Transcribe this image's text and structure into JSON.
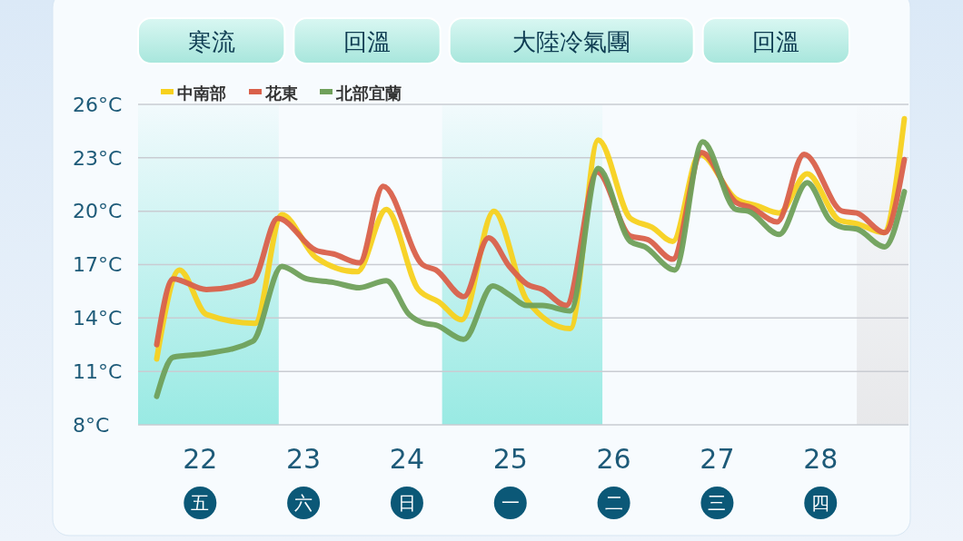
{
  "chart_data": {
    "type": "line",
    "xlim": [
      21.4,
      28.85
    ],
    "ylim": [
      8,
      26
    ],
    "xticks": [
      {
        "value": 22,
        "label": "22\n五"
      },
      {
        "value": 23,
        "label": "23\n六"
      },
      {
        "value": 24,
        "label": "24\n日"
      },
      {
        "value": 25,
        "label": "25\n一"
      },
      {
        "value": 26,
        "label": "26\n二"
      },
      {
        "value": 27,
        "label": "27\n三"
      },
      {
        "value": 28,
        "label": "28\n四"
      }
    ],
    "yticks": [
      {
        "value": 8,
        "label": "8°C"
      },
      {
        "value": 11,
        "label": "11°C"
      },
      {
        "value": 14,
        "label": "14°C"
      },
      {
        "value": 17,
        "label": "17°C"
      },
      {
        "value": 20,
        "label": "20°C"
      },
      {
        "value": 23,
        "label": "23°C"
      },
      {
        "value": 26,
        "label": "26°C"
      }
    ],
    "grid": "y",
    "legend": "top left",
    "marker": "none",
    "line_style": "solid",
    "annotations": [
      "寒流",
      "回溫",
      "大陸冷氣團",
      "回溫"
    ],
    "bands": [
      {
        "axis": "x",
        "from": 21.4,
        "to": 22.76,
        "color": "#8ee8e0"
      },
      {
        "axis": "x",
        "from": 24.34,
        "to": 25.89,
        "color": "#8ee8e0"
      },
      {
        "axis": "x",
        "from": 28.35,
        "to": 28.85,
        "color": "#e6e6e8"
      }
    ],
    "series": [
      {
        "name": "中南部",
        "color": "#f7d11e",
        "x": [
          21.58,
          21.8,
          22.06,
          22.53,
          22.79,
          23.12,
          23.52,
          23.8,
          24.11,
          24.31,
          24.53,
          24.84,
          25.16,
          25.58,
          25.85,
          26.16,
          26.37,
          26.57,
          26.83,
          27.18,
          27.39,
          27.6,
          27.87,
          28.18,
          28.35,
          28.61,
          28.81
        ],
        "values": [
          11.7,
          16.7,
          14.2,
          13.7,
          19.8,
          17.4,
          16.6,
          20.1,
          15.6,
          14.9,
          13.9,
          20.0,
          15.0,
          13.4,
          24.0,
          19.6,
          19.1,
          18.3,
          23.2,
          20.7,
          20.3,
          19.9,
          22.1,
          19.5,
          19.3,
          18.8,
          25.2
        ]
      },
      {
        "name": "花東",
        "color": "#d9604a",
        "x": [
          21.58,
          21.74,
          22.06,
          22.51,
          22.75,
          23.12,
          23.29,
          23.54,
          23.77,
          24.15,
          24.28,
          24.55,
          24.79,
          24.99,
          25.16,
          25.31,
          25.54,
          25.84,
          26.16,
          26.33,
          26.57,
          26.85,
          27.18,
          27.33,
          27.58,
          27.84,
          28.21,
          28.35,
          28.62,
          28.81
        ],
        "values": [
          12.5,
          16.2,
          15.6,
          16.1,
          19.6,
          17.8,
          17.6,
          17.1,
          21.4,
          17.0,
          16.7,
          15.2,
          18.5,
          16.9,
          15.9,
          15.6,
          14.7,
          22.2,
          18.6,
          18.4,
          17.3,
          23.3,
          20.5,
          20.2,
          19.4,
          23.2,
          20.0,
          19.9,
          18.8,
          22.9
        ]
      },
      {
        "name": "北部宜蘭",
        "color": "#6fa05a",
        "x": [
          21.58,
          21.74,
          22.06,
          22.51,
          22.79,
          23.03,
          23.29,
          23.54,
          23.8,
          24.02,
          24.17,
          24.28,
          24.55,
          24.83,
          24.99,
          25.16,
          25.31,
          25.58,
          25.85,
          26.16,
          26.3,
          26.59,
          26.86,
          27.18,
          27.3,
          27.6,
          27.87,
          28.09,
          28.21,
          28.35,
          28.62,
          28.81
        ],
        "values": [
          9.6,
          11.8,
          12.0,
          12.7,
          16.9,
          16.2,
          16.0,
          15.7,
          16.1,
          14.2,
          13.7,
          13.6,
          12.8,
          15.8,
          15.3,
          14.7,
          14.7,
          14.4,
          22.4,
          18.3,
          18.0,
          16.7,
          23.9,
          20.1,
          20.0,
          18.7,
          21.6,
          19.5,
          19.1,
          19.0,
          18.0,
          21.1
        ]
      }
    ]
  }
}
